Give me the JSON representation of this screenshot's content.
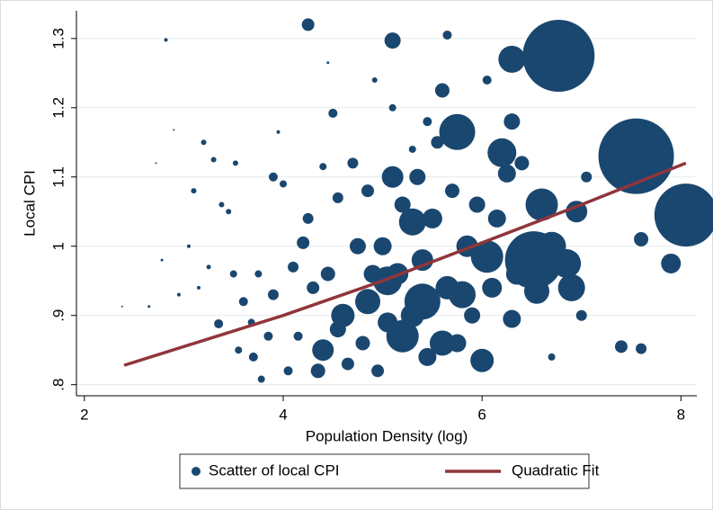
{
  "chart_data": {
    "type": "scatter",
    "x_label": "Population Density (log)",
    "y_label": "Local CPI",
    "xlim": [
      1.92,
      8.16
    ],
    "ylim": [
      0.784,
      1.34
    ],
    "xticks": [
      2,
      4,
      6,
      8
    ],
    "yticks": [
      {
        "value": 0.8,
        "label": ".8"
      },
      {
        "value": 0.9,
        "label": ".9"
      },
      1,
      1.1,
      1.2,
      1.3
    ],
    "grid": true,
    "legend": "bottom",
    "series": [
      {
        "name": "Scatter of local CPI",
        "kind": "scatter",
        "color": "#1a476f",
        "x": [
          2.38,
          2.65,
          2.72,
          2.78,
          2.82,
          2.9,
          2.95,
          3.05,
          3.1,
          3.15,
          3.2,
          3.25,
          3.3,
          3.35,
          3.38,
          3.45,
          3.5,
          3.52,
          3.55,
          3.6,
          3.68,
          3.7,
          3.75,
          3.78,
          3.85,
          3.9,
          3.9,
          3.95,
          4.0,
          4.05,
          4.1,
          4.15,
          4.2,
          4.25,
          4.3,
          4.35,
          4.4,
          4.45,
          4.5,
          4.55,
          4.55,
          4.65,
          4.7,
          4.75,
          4.8,
          4.85,
          4.9,
          4.92,
          4.95,
          5.0,
          5.05,
          5.1,
          5.15,
          5.2,
          5.3,
          5.35,
          5.4,
          5.45,
          5.5,
          5.55,
          5.65,
          5.7,
          5.75,
          5.85,
          5.9,
          5.95,
          6.1,
          6.15,
          6.35,
          6.45,
          7.0,
          7.05,
          6.7,
          6.05,
          4.45,
          5.45,
          5.3,
          6.77,
          7.55,
          8.05,
          6.52,
          5.75,
          6.6,
          6.05,
          6.2,
          6.3,
          6.85,
          6.9,
          6.0,
          5.1,
          5.6,
          5.3,
          4.25,
          5.1,
          5.65,
          7.9,
          7.6,
          7.4,
          7.6,
          6.95,
          6.3,
          5.4,
          5.2,
          5.05,
          4.85,
          4.6,
          4.4,
          5.6,
          5.8,
          6.55,
          6.3,
          6.25,
          6.4,
          6.7
        ],
        "values": [
          0.913,
          0.913,
          1.12,
          0.98,
          1.298,
          1.168,
          0.93,
          1.0,
          1.08,
          0.94,
          1.15,
          0.97,
          1.125,
          0.888,
          1.06,
          1.05,
          0.96,
          1.12,
          0.85,
          0.92,
          0.89,
          0.84,
          0.96,
          0.808,
          0.87,
          1.1,
          0.93,
          1.165,
          1.09,
          0.82,
          0.97,
          0.87,
          1.005,
          1.04,
          0.94,
          0.82,
          1.115,
          0.96,
          1.192,
          1.07,
          0.88,
          0.83,
          1.12,
          1.0,
          0.86,
          1.08,
          0.96,
          1.24,
          0.82,
          1.0,
          0.89,
          1.2,
          0.96,
          1.06,
          0.9,
          1.1,
          0.98,
          0.84,
          1.04,
          1.15,
          0.94,
          1.08,
          0.86,
          1.0,
          0.9,
          1.06,
          0.94,
          1.04,
          0.96,
          1.0,
          0.9,
          1.1,
          0.84,
          1.24,
          1.265,
          1.18,
          1.14,
          1.275,
          1.13,
          1.045,
          0.98,
          1.165,
          1.06,
          0.985,
          1.135,
          1.27,
          0.975,
          0.94,
          0.835,
          1.1,
          1.225,
          1.035,
          1.32,
          1.297,
          1.305,
          0.975,
          1.01,
          0.855,
          0.852,
          1.05,
          0.895,
          0.92,
          0.87,
          0.95,
          0.92,
          0.9,
          0.85,
          0.86,
          0.93,
          0.935,
          1.18,
          1.105,
          1.12,
          1.0
        ],
        "sizes": [
          1,
          1.5,
          1,
          1.5,
          2,
          1,
          2,
          2,
          3,
          2,
          3,
          2.5,
          3,
          5,
          3,
          3,
          4,
          3,
          4,
          5,
          4,
          5,
          4,
          4,
          5,
          5,
          6,
          2,
          4,
          5,
          6,
          5,
          7,
          6,
          7,
          8,
          4,
          8,
          5,
          6,
          9,
          7,
          6,
          9,
          8,
          7,
          10,
          3,
          7,
          10,
          11,
          4,
          12,
          9,
          13,
          9,
          12,
          10,
          11,
          7,
          13,
          8,
          10,
          12,
          9,
          9,
          11,
          10,
          12,
          9,
          6,
          6,
          4,
          5,
          1.5,
          5,
          4,
          40,
          42,
          35,
          32,
          20,
          18,
          18,
          16,
          15,
          16,
          15,
          13,
          12,
          8,
          15,
          7,
          9,
          5,
          11,
          8,
          7,
          6,
          12,
          10,
          20,
          18,
          16,
          14,
          13,
          12,
          14,
          15,
          14,
          9,
          10,
          8,
          16
        ]
      },
      {
        "name": "Quadratic Fit",
        "kind": "line",
        "color": "#90353b",
        "x": [
          2.4,
          3,
          4,
          5,
          6,
          7,
          8.05
        ],
        "values": [
          0.828,
          0.855,
          0.9,
          0.95,
          1.005,
          1.06,
          1.12
        ]
      }
    ]
  }
}
